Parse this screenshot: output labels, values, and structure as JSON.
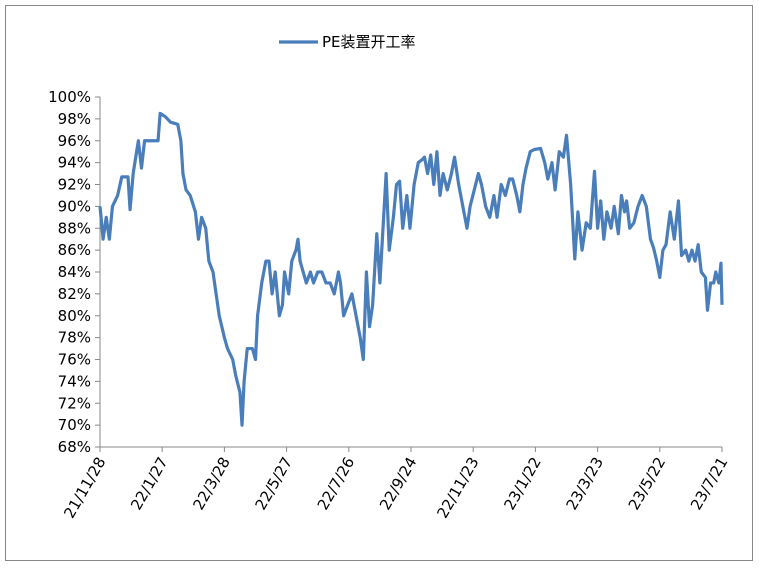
{
  "chart_data": {
    "type": "line",
    "x": [
      "2021-11-28",
      "2021-12-01",
      "2021-12-04",
      "2021-12-07",
      "2021-12-10",
      "2021-12-15",
      "2021-12-19",
      "2021-12-25",
      "2021-12-27",
      "2021-12-30",
      "2022-01-04",
      "2022-01-07",
      "2022-01-10",
      "2022-01-23",
      "2022-01-25",
      "2022-01-30",
      "2022-02-04",
      "2022-02-11",
      "2022-02-14",
      "2022-02-16",
      "2022-02-19",
      "2022-02-23",
      "2022-02-28",
      "2022-03-03",
      "2022-03-06",
      "2022-03-10",
      "2022-03-13",
      "2022-03-17",
      "2022-03-20",
      "2022-03-23",
      "2022-03-28",
      "2022-03-31",
      "2022-04-05",
      "2022-04-08",
      "2022-04-12",
      "2022-04-14",
      "2022-04-16",
      "2022-04-19",
      "2022-04-24",
      "2022-04-27",
      "2022-04-29",
      "2022-05-03",
      "2022-05-07",
      "2022-05-10",
      "2022-05-13",
      "2022-05-16",
      "2022-05-20",
      "2022-05-23",
      "2022-05-25",
      "2022-05-29",
      "2022-06-01",
      "2022-06-05",
      "2022-06-07",
      "2022-06-09",
      "2022-06-12",
      "2022-06-15",
      "2022-06-19",
      "2022-06-22",
      "2022-06-26",
      "2022-06-30",
      "2022-07-04",
      "2022-07-08",
      "2022-07-12",
      "2022-07-16",
      "2022-07-18",
      "2022-07-21",
      "2022-07-25",
      "2022-07-29",
      "2022-08-02",
      "2022-08-06",
      "2022-08-09",
      "2022-08-12",
      "2022-08-15",
      "2022-08-18",
      "2022-08-22",
      "2022-08-25",
      "2022-08-28",
      "2022-08-31",
      "2022-09-03",
      "2022-09-07",
      "2022-09-10",
      "2022-09-13",
      "2022-09-16",
      "2022-09-20",
      "2022-09-23",
      "2022-09-27",
      "2022-10-01",
      "2022-10-05",
      "2022-10-07",
      "2022-10-10",
      "2022-10-13",
      "2022-10-16",
      "2022-10-19",
      "2022-10-22",
      "2022-10-25",
      "2022-10-29",
      "2022-11-02",
      "2022-11-05",
      "2022-11-09",
      "2022-11-13",
      "2022-11-17",
      "2022-11-20",
      "2022-11-24",
      "2022-11-28",
      "2022-12-01",
      "2022-12-05",
      "2022-12-09",
      "2022-12-13",
      "2022-12-16",
      "2022-12-20",
      "2022-12-24",
      "2022-12-28",
      "2022-12-31",
      "2023-01-04",
      "2023-01-07",
      "2023-01-10",
      "2023-01-13",
      "2023-01-17",
      "2023-01-21",
      "2023-01-27",
      "2023-01-31",
      "2023-02-03",
      "2023-02-07",
      "2023-02-10",
      "2023-02-14",
      "2023-02-18",
      "2023-02-21",
      "2023-02-25",
      "2023-03-01",
      "2023-03-04",
      "2023-03-08",
      "2023-03-12",
      "2023-03-16",
      "2023-03-20",
      "2023-03-23",
      "2023-03-26",
      "2023-03-29",
      "2023-04-01",
      "2023-04-05",
      "2023-04-08",
      "2023-04-12",
      "2023-04-15",
      "2023-04-18",
      "2023-04-20",
      "2023-04-23",
      "2023-04-27",
      "2023-05-01",
      "2023-05-05",
      "2023-05-09",
      "2023-05-13",
      "2023-05-16",
      "2023-05-19",
      "2023-05-22",
      "2023-05-25",
      "2023-05-28",
      "2023-06-01",
      "2023-06-05",
      "2023-06-09",
      "2023-06-12",
      "2023-06-16",
      "2023-06-19",
      "2023-06-22",
      "2023-06-25",
      "2023-06-28",
      "2023-07-01",
      "2023-07-05",
      "2023-07-07",
      "2023-07-10",
      "2023-07-13",
      "2023-07-15",
      "2023-07-18",
      "2023-07-20",
      "2023-07-21"
    ],
    "series": [
      {
        "name": "PE装置开工率",
        "color": "#4a7ebb",
        "values": [
          90.0,
          87,
          89,
          87,
          90,
          91,
          92.7,
          92.7,
          89.7,
          93,
          96,
          93.5,
          96,
          96,
          98.5,
          98.2,
          97.7,
          97.5,
          96,
          93,
          91.5,
          91,
          89.5,
          87,
          89,
          88,
          85,
          84,
          82,
          80,
          78,
          77,
          76,
          74.5,
          73,
          70,
          74,
          77,
          77,
          76,
          80,
          83,
          85,
          85,
          82,
          84,
          80,
          81,
          84,
          82,
          85,
          86,
          87,
          85,
          84,
          83,
          84,
          83,
          84,
          84,
          83,
          83,
          82,
          84,
          83,
          80,
          81,
          82,
          80,
          78,
          76,
          84,
          79,
          81,
          87.5,
          83,
          88,
          93,
          86,
          89,
          92,
          92.3,
          88,
          91,
          88,
          92,
          94,
          94.3,
          94.5,
          93,
          94.7,
          92,
          95,
          91,
          93,
          91.5,
          93,
          94.5,
          92,
          90,
          88,
          90,
          91.5,
          93,
          92,
          90,
          89,
          91,
          89,
          92,
          91,
          92.5,
          92.5,
          91,
          89.5,
          92,
          93.5,
          95,
          95.2,
          95.3,
          94,
          92.5,
          94,
          91.5,
          95,
          94.5,
          96.5,
          92,
          85.2,
          89.5,
          86,
          88.5,
          88,
          93.2,
          88,
          90.5,
          87,
          89.5,
          88,
          90,
          87.5,
          91,
          89.5,
          90.5,
          88,
          88.5,
          90,
          91,
          90,
          87,
          86.2,
          85,
          83.5,
          86,
          86.5,
          89.5,
          87,
          90.5,
          85.5,
          86,
          85,
          86,
          85,
          86.5,
          84,
          83.5,
          80.5,
          83,
          83,
          84,
          83,
          84.8,
          81
        ]
      }
    ],
    "xlim": [
      "2021-11-28",
      "2023-07-21"
    ],
    "xticks": [
      {
        "value": "2021-11-28",
        "label": "21/11/28"
      },
      {
        "value": "2022-01-27",
        "label": "22/1/27"
      },
      {
        "value": "2022-03-28",
        "label": "22/3/28"
      },
      {
        "value": "2022-05-27",
        "label": "22/5/27"
      },
      {
        "value": "2022-07-26",
        "label": "22/7/26"
      },
      {
        "value": "2022-09-24",
        "label": "22/9/24"
      },
      {
        "value": "2022-11-23",
        "label": "22/11/23"
      },
      {
        "value": "2023-01-22",
        "label": "23/1/22"
      },
      {
        "value": "2023-03-23",
        "label": "23/3/23"
      },
      {
        "value": "2023-05-22",
        "label": "23/5/22"
      },
      {
        "value": "2023-07-21",
        "label": "23/7/21"
      }
    ],
    "ylim": [
      68,
      100
    ],
    "yticks": [
      {
        "value": 68,
        "label": "68%"
      },
      {
        "value": 70,
        "label": "70%"
      },
      {
        "value": 72,
        "label": "72%"
      },
      {
        "value": 74,
        "label": "74%"
      },
      {
        "value": 76,
        "label": "76%"
      },
      {
        "value": 78,
        "label": "78%"
      },
      {
        "value": 80,
        "label": "80%"
      },
      {
        "value": 82,
        "label": "82%"
      },
      {
        "value": 84,
        "label": "84%"
      },
      {
        "value": 86,
        "label": "86%"
      },
      {
        "value": 88,
        "label": "88%"
      },
      {
        "value": 90,
        "label": "90%"
      },
      {
        "value": 92,
        "label": "92%"
      },
      {
        "value": 94,
        "label": "94%"
      },
      {
        "value": 96,
        "label": "96%"
      },
      {
        "value": 98,
        "label": "98%"
      },
      {
        "value": 100,
        "label": "100%"
      }
    ],
    "grid": false,
    "legend": "top"
  }
}
